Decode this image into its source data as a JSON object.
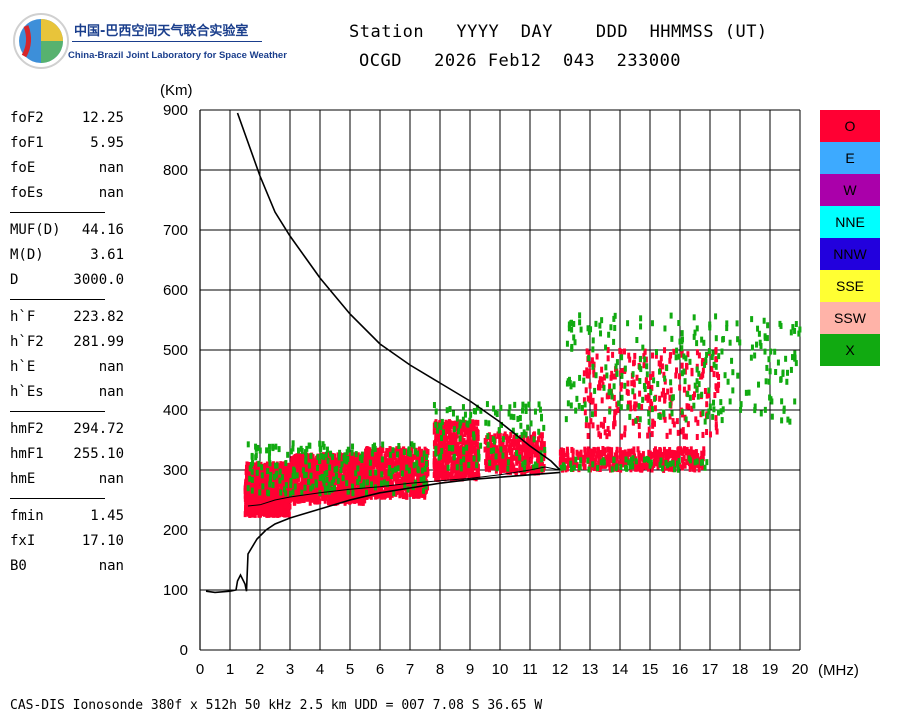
{
  "logo": {
    "name_cn": "中国-巴西空间天气联合实验室",
    "name_en": "China-Brazil Joint Laboratory for Space Weather"
  },
  "header": {
    "labels": "Station   YYYY  DAY    DDD  HHMMSS (UT)",
    "values": "OCGD   2026 Feb12  043  233000"
  },
  "params": [
    [
      {
        "name": "foF2",
        "value": "12.25"
      },
      {
        "name": "foF1",
        "value": "5.95"
      },
      {
        "name": "foE",
        "value": "nan"
      },
      {
        "name": "foEs",
        "value": "nan"
      }
    ],
    [
      {
        "name": "MUF(D)",
        "value": "44.16"
      },
      {
        "name": "M(D)",
        "value": "3.61"
      },
      {
        "name": "D",
        "value": "3000.0"
      }
    ],
    [
      {
        "name": "h`F",
        "value": "223.82"
      },
      {
        "name": "h`F2",
        "value": "281.99"
      },
      {
        "name": "h`E",
        "value": "nan"
      },
      {
        "name": "h`Es",
        "value": "nan"
      }
    ],
    [
      {
        "name": "hmF2",
        "value": "294.72"
      },
      {
        "name": "hmF1",
        "value": "255.10"
      },
      {
        "name": "hmE",
        "value": "nan"
      }
    ],
    [
      {
        "name": "fmin",
        "value": "1.45"
      },
      {
        "name": "fxI",
        "value": "17.10"
      },
      {
        "name": "B0",
        "value": "nan"
      }
    ]
  ],
  "legend": [
    {
      "label": "O",
      "color": "#ff0033"
    },
    {
      "label": "E",
      "color": "#3daaff"
    },
    {
      "label": "W",
      "color": "#aa00aa"
    },
    {
      "label": "NNE",
      "color": "#00ffff"
    },
    {
      "label": "NNW",
      "color": "#2200dd"
    },
    {
      "label": "SSE",
      "color": "#ffff33"
    },
    {
      "label": "SSW",
      "color": "#ffb3a8"
    },
    {
      "label": "X",
      "color": "#11aa11"
    }
  ],
  "footer": "CAS-DIS Ionosonde 380f x 512h 50 kHz 2.5 km UDD = 007 7.08 S 36.65 W",
  "chart_data": {
    "type": "scatter",
    "xlabel": "(MHz)",
    "ylabel": "(Km)",
    "xlim": [
      0,
      20
    ],
    "ylim": [
      0,
      900
    ],
    "xticks": [
      "0",
      "1",
      "2",
      "3",
      "4",
      "5",
      "6",
      "7",
      "8",
      "9",
      "10",
      "11",
      "12",
      "13",
      "14",
      "15",
      "16",
      "17",
      "18",
      "19",
      "20"
    ],
    "yticks": [
      "0",
      "100",
      "200",
      "300",
      "400",
      "500",
      "600",
      "700",
      "800",
      "900"
    ],
    "grid": true,
    "legend_position": "right",
    "series": [
      {
        "name": "O",
        "clusters": [
          {
            "x": [
              1.5,
              3.0
            ],
            "y": [
              225,
              310
            ],
            "n": 900
          },
          {
            "x": [
              3.0,
              5.5
            ],
            "y": [
              245,
              325
            ],
            "n": 1000
          },
          {
            "x": [
              5.5,
              7.6
            ],
            "y": [
              255,
              335
            ],
            "n": 700
          },
          {
            "x": [
              7.8,
              9.3
            ],
            "y": [
              285,
              380
            ],
            "n": 550
          },
          {
            "x": [
              9.5,
              11.5
            ],
            "y": [
              295,
              360
            ],
            "n": 350
          },
          {
            "x": [
              12.0,
              16.8
            ],
            "y": [
              300,
              335
            ],
            "n": 400
          },
          {
            "x": [
              12.8,
              17.3
            ],
            "y": [
              355,
              500
            ],
            "n": 260
          }
        ]
      },
      {
        "name": "X",
        "clusters": [
          {
            "x": [
              1.6,
              7.6
            ],
            "y": [
              260,
              345
            ],
            "n": 220
          },
          {
            "x": [
              7.8,
              11.5
            ],
            "y": [
              300,
              410
            ],
            "n": 120
          },
          {
            "x": [
              12.0,
              17.0
            ],
            "y": [
              300,
              320
            ],
            "n": 60
          },
          {
            "x": [
              12.2,
              20.0
            ],
            "y": [
              380,
              560
            ],
            "n": 260
          }
        ]
      },
      {
        "name": "trace_upper",
        "x": [
          1.25,
          1.5,
          2.0,
          2.5,
          3.0,
          3.5,
          4.0,
          5.0,
          6.0,
          7.0,
          8.0,
          9.0,
          10.0,
          11.0,
          11.7,
          12.0
        ],
        "y": [
          895,
          860,
          790,
          730,
          690,
          655,
          620,
          560,
          510,
          475,
          445,
          415,
          380,
          340,
          315,
          300
        ]
      },
      {
        "name": "trace_lower",
        "x": [
          0.2,
          0.5,
          1.0,
          1.2,
          1.25,
          1.35,
          1.5,
          1.55,
          1.6,
          1.9,
          2.2,
          2.5,
          3.0,
          4.0,
          5.0,
          6.0,
          7.0,
          8.0,
          9.0,
          10.0,
          11.0,
          12.0
        ],
        "y": [
          98,
          96,
          98,
          100,
          115,
          125,
          110,
          98,
          160,
          185,
          200,
          210,
          220,
          235,
          250,
          262,
          270,
          278,
          284,
          288,
          292,
          296
        ]
      },
      {
        "name": "trace_profile",
        "x": [
          1.6,
          2.0,
          2.5,
          3.0,
          4.0,
          5.0,
          6.0,
          7.0,
          8.0,
          9.0,
          10.0,
          11.0,
          11.5,
          12.0
        ],
        "y": [
          240,
          242,
          250,
          255,
          262,
          268,
          272,
          278,
          282,
          286,
          292,
          300,
          305,
          300
        ]
      }
    ]
  }
}
